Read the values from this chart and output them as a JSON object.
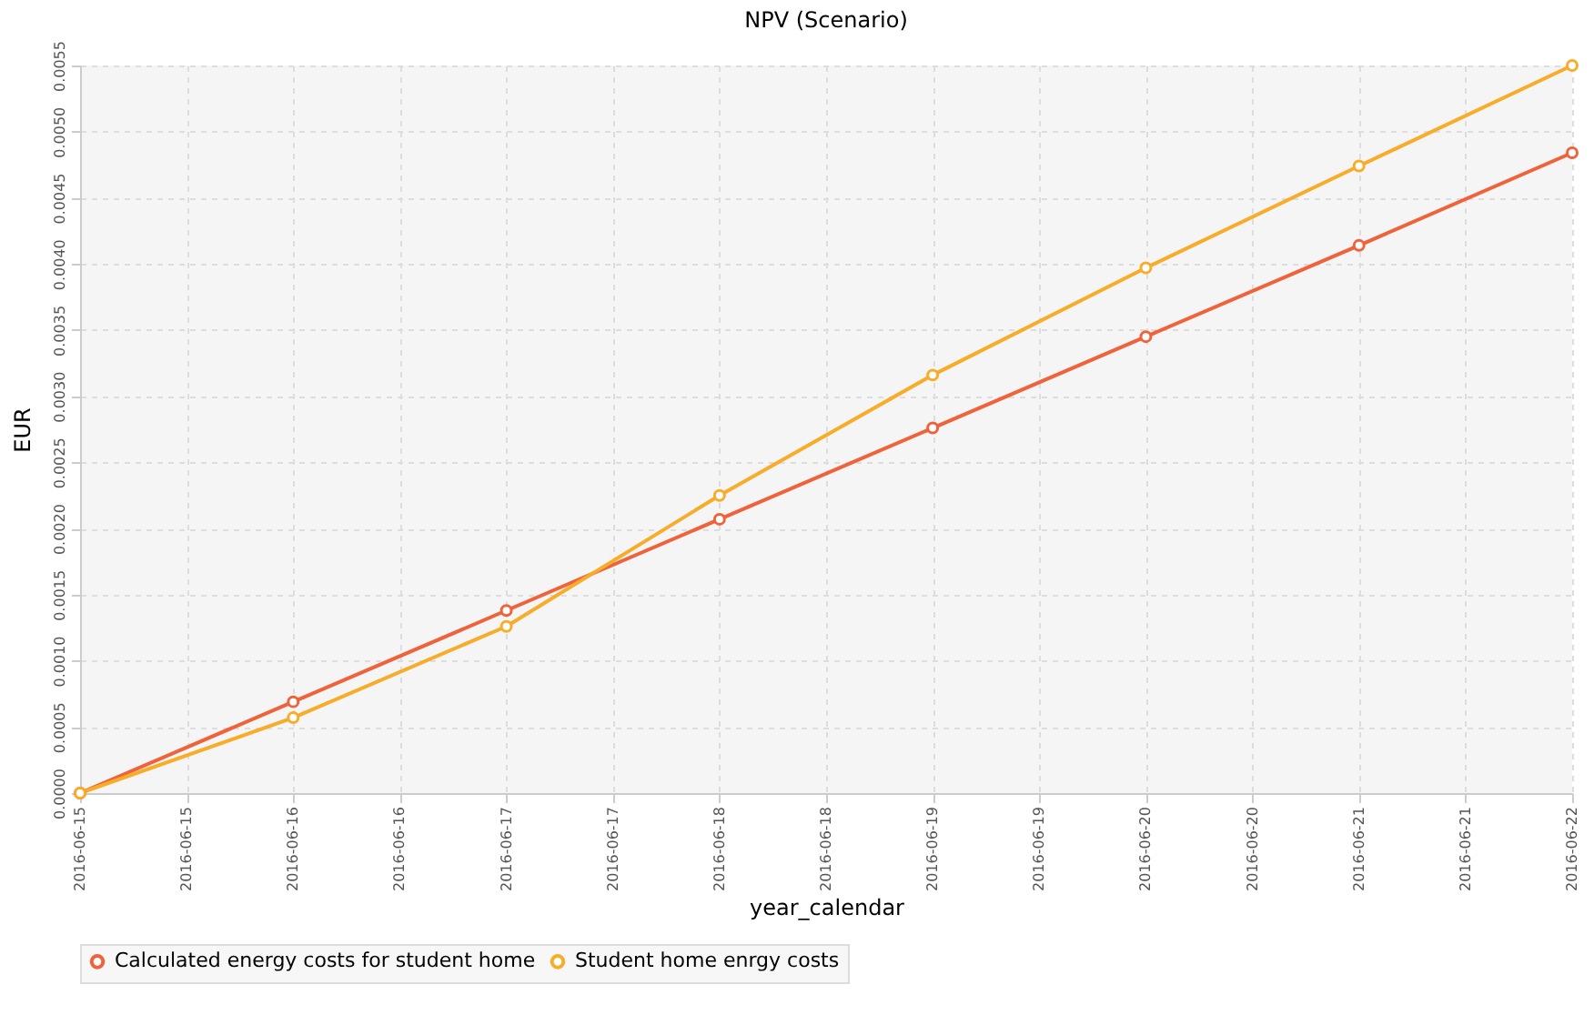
{
  "chart_data": {
    "type": "line",
    "title": "NPV (Scenario)",
    "xlabel": "year_calendar",
    "ylabel": "EUR",
    "x": [
      "2016-06-15",
      "2016-06-16",
      "2016-06-17",
      "2016-06-18",
      "2016-06-19",
      "2016-06-20",
      "2016-06-21",
      "2016-06-22"
    ],
    "series": [
      {
        "name": "Calculated energy costs for student home",
        "color": "#f0623a",
        "values": [
          0.0,
          0.00069,
          0.00138,
          0.00207,
          0.00276,
          0.00345,
          0.00414,
          0.00484
        ]
      },
      {
        "name": "Student home enrgy costs",
        "color": "#f7ac2a",
        "values": [
          0.0,
          0.00057,
          0.00126,
          0.00225,
          0.00316,
          0.00397,
          0.00474,
          0.0055
        ]
      }
    ],
    "xlim": [
      "2016-06-15",
      "2016-06-22"
    ],
    "xticks": [
      {
        "value": "2016-06-15T00:00",
        "label": "2016-06-15"
      },
      {
        "value": "2016-06-15T12:00",
        "label": "2016-06-15"
      },
      {
        "value": "2016-06-16T00:00",
        "label": "2016-06-16"
      },
      {
        "value": "2016-06-16T12:00",
        "label": "2016-06-16"
      },
      {
        "value": "2016-06-17T00:00",
        "label": "2016-06-17"
      },
      {
        "value": "2016-06-17T12:00",
        "label": "2016-06-17"
      },
      {
        "value": "2016-06-18T00:00",
        "label": "2016-06-18"
      },
      {
        "value": "2016-06-18T12:00",
        "label": "2016-06-18"
      },
      {
        "value": "2016-06-19T00:00",
        "label": "2016-06-19"
      },
      {
        "value": "2016-06-19T12:00",
        "label": "2016-06-19"
      },
      {
        "value": "2016-06-20T00:00",
        "label": "2016-06-20"
      },
      {
        "value": "2016-06-20T12:00",
        "label": "2016-06-20"
      },
      {
        "value": "2016-06-21T00:00",
        "label": "2016-06-21"
      },
      {
        "value": "2016-06-21T12:00",
        "label": "2016-06-21"
      },
      {
        "value": "2016-06-22T00:00",
        "label": "2016-06-22"
      }
    ],
    "ylim": [
      0,
      0.0055
    ],
    "yticks": [
      {
        "value": 0,
        "label": "0.0000"
      },
      {
        "value": 0.0005,
        "label": "0.0005"
      },
      {
        "value": 0.001,
        "label": "0.0010"
      },
      {
        "value": 0.0015,
        "label": "0.0015"
      },
      {
        "value": 0.002,
        "label": "0.0020"
      },
      {
        "value": 0.0025,
        "label": "0.0025"
      },
      {
        "value": 0.003,
        "label": "0.0030"
      },
      {
        "value": 0.0035,
        "label": "0.0035"
      },
      {
        "value": 0.004,
        "label": "0.0040"
      },
      {
        "value": 0.0045,
        "label": "0.0045"
      },
      {
        "value": 0.005,
        "label": "0.0050"
      },
      {
        "value": 0.0055,
        "label": "0.0055"
      }
    ],
    "grid": true,
    "legend": "bottom",
    "marker": "circle",
    "line_style": "solid"
  }
}
